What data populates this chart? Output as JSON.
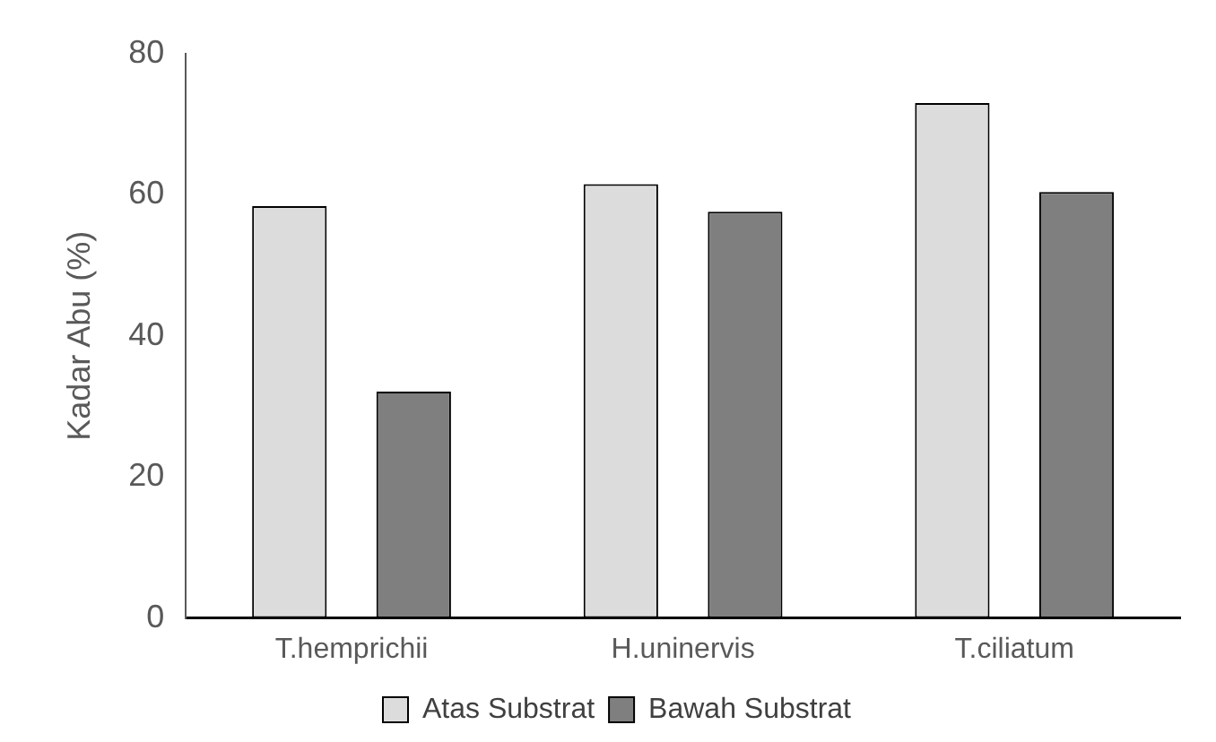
{
  "chart_data": {
    "type": "bar",
    "ylabel": "Kadar Abu (%)",
    "categories": [
      "T.hemprichii",
      "H.uninervis",
      "T.ciliatum"
    ],
    "series": [
      {
        "name": "Atas Substrat",
        "color": "#dcdcdc",
        "values": [
          58.4,
          61.5,
          73.0
        ]
      },
      {
        "name": "Bawah Substrat",
        "color": "#7f7f7f",
        "values": [
          32.1,
          57.6,
          60.4
        ]
      }
    ],
    "ylim": [
      0,
      80
    ],
    "yticks": [
      0,
      20,
      40,
      60,
      80
    ],
    "grid": false,
    "legend": "bottom"
  }
}
